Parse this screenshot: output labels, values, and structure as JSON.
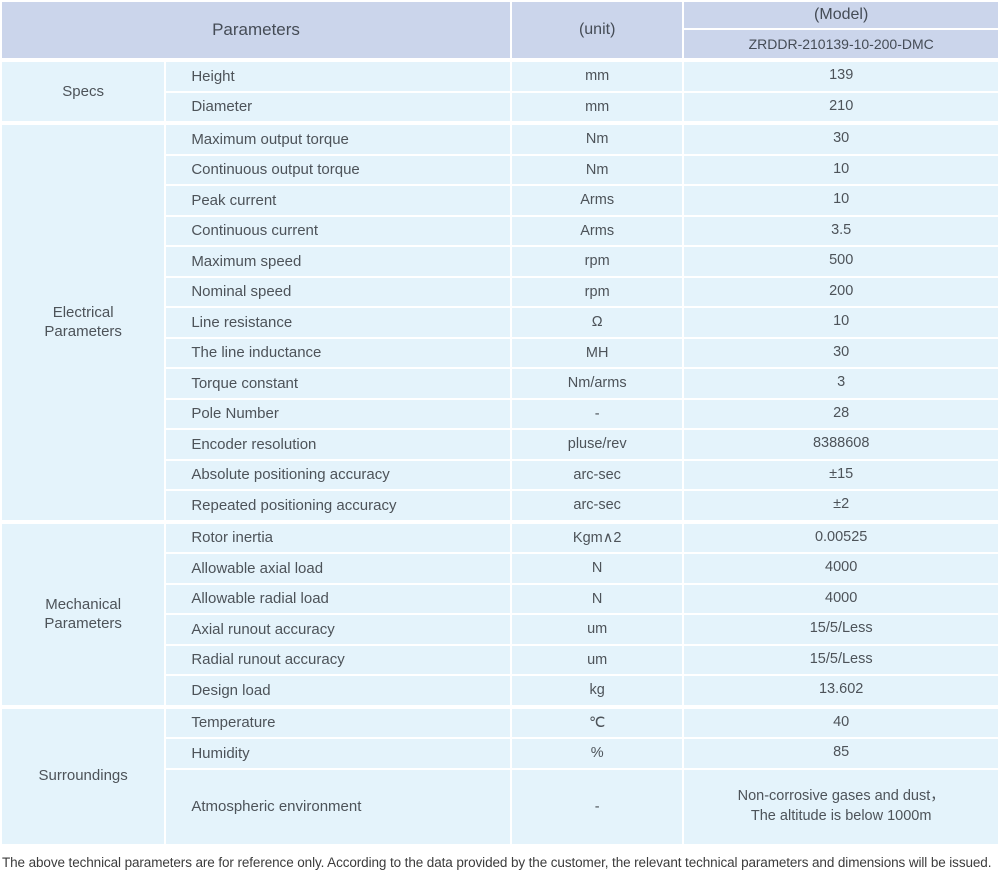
{
  "header": {
    "parameters_label": "Parameters",
    "unit_label": "(unit)",
    "model_label": "(Model)",
    "model_value": "ZRDDR-210139-10-200-DMC"
  },
  "colors": {
    "header_bg": "#cbd5eb",
    "row_bg": "#e4f3fb",
    "gap": "#ffffff",
    "body_text": "#4d5359",
    "header_text": "#454c56"
  },
  "sections": [
    {
      "group": "Specs",
      "rows": [
        {
          "param": "Height",
          "unit": "mm",
          "value": "139"
        },
        {
          "param": "Diameter",
          "unit": "mm",
          "value": "210"
        }
      ]
    },
    {
      "group": "Electrical\nParameters",
      "rows": [
        {
          "param": "Maximum output torque",
          "unit": "Nm",
          "value": "30"
        },
        {
          "param": "Continuous output torque",
          "unit": "Nm",
          "value": "10"
        },
        {
          "param": "Peak current",
          "unit": "Arms",
          "value": "10"
        },
        {
          "param": "Continuous current",
          "unit": "Arms",
          "value": "3.5"
        },
        {
          "param": "Maximum speed",
          "unit": "rpm",
          "value": "500"
        },
        {
          "param": "Nominal speed",
          "unit": "rpm",
          "value": "200"
        },
        {
          "param": "Line resistance",
          "unit": "Ω",
          "value": "10"
        },
        {
          "param": "The line inductance",
          "unit": "MH",
          "value": "30"
        },
        {
          "param": "Torque constant",
          "unit": "Nm/arms",
          "value": "3"
        },
        {
          "param": "Pole Number",
          "unit": "-",
          "value": "28"
        },
        {
          "param": "Encoder resolution",
          "unit": "pluse/rev",
          "value": "8388608"
        },
        {
          "param": "Absolute positioning accuracy",
          "unit": "arc-sec",
          "value": "±15"
        },
        {
          "param": "Repeated positioning accuracy",
          "unit": "arc-sec",
          "value": "±2"
        }
      ]
    },
    {
      "group": "Mechanical\nParameters",
      "rows": [
        {
          "param": "Rotor inertia",
          "unit": "Kgm∧2",
          "value": "0.00525"
        },
        {
          "param": "Allowable axial load",
          "unit": "N",
          "value": "4000"
        },
        {
          "param": "Allowable radial load",
          "unit": "N",
          "value": "4000"
        },
        {
          "param": "Axial runout accuracy",
          "unit": "um",
          "value": "15/5/Less"
        },
        {
          "param": "Radial runout accuracy",
          "unit": "um",
          "value": "15/5/Less"
        },
        {
          "param": "Design load",
          "unit": "kg",
          "value": "13.602"
        }
      ]
    },
    {
      "group": "Surroundings",
      "rows": [
        {
          "param": "Temperature",
          "unit": "℃",
          "value": "40"
        },
        {
          "param": "Humidity",
          "unit": "%",
          "value": "85"
        },
        {
          "param": "Atmospheric environment",
          "unit": "-",
          "value": "Non-corrosive gases and dust，\nThe altitude is below 1000m"
        }
      ]
    }
  ],
  "footnote": "The above technical parameters are for reference only. According to the data provided by the customer, the relevant technical parameters and dimensions will be issued."
}
